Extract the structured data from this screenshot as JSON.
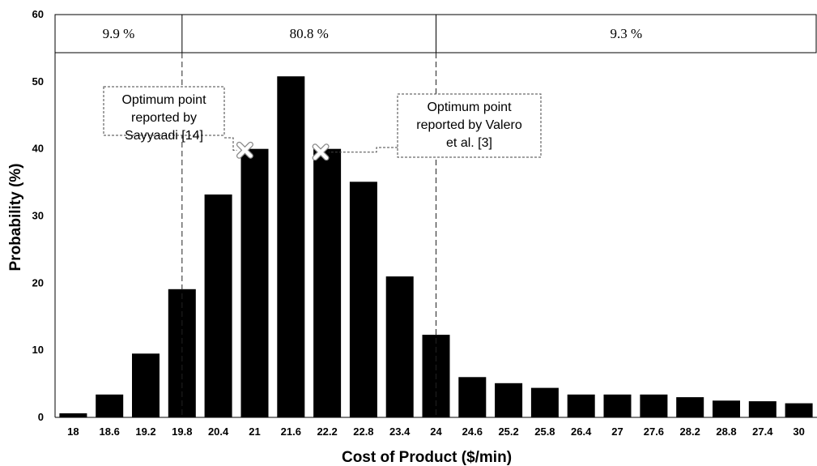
{
  "chart_data": {
    "type": "bar",
    "title": "",
    "xlabel": "Cost of Product ($/min)",
    "ylabel": "Probability (%)",
    "ylim": [
      0,
      60
    ],
    "yticks": [
      "0",
      "10",
      "20",
      "30",
      "40",
      "50",
      "60"
    ],
    "categories": [
      "18",
      "18.6",
      "19.2",
      "19.8",
      "20.4",
      "21",
      "21.6",
      "22.2",
      "22.8",
      "23.4",
      "24",
      "24.6",
      "25.2",
      "25.8",
      "26.4",
      "27",
      "27.6",
      "28.2",
      "28.8",
      "27.4",
      "30"
    ],
    "values": [
      0.6,
      3.4,
      9.5,
      19.1,
      33.2,
      40.0,
      50.8,
      40.0,
      35.1,
      21.0,
      12.3,
      6.0,
      5.1,
      4.4,
      3.4,
      3.4,
      3.4,
      3.0,
      2.5,
      2.4,
      2.1
    ],
    "color": "#000000",
    "grid": false,
    "bands": [
      {
        "label": "9.9 %"
      },
      {
        "label": "80.8 %"
      },
      {
        "label": "9.3 %"
      }
    ],
    "band_boundaries_x": [
      19.8,
      24
    ],
    "annotations": [
      {
        "lines": [
          "Optimum point",
          "reported by",
          "Sayyaadi [14]"
        ],
        "marker_category": "21",
        "marker_value": 39.8
      },
      {
        "lines": [
          "Optimum point",
          "reported by Valero",
          "et al. [3]"
        ],
        "marker_category": "22.2",
        "marker_value": 39.5
      }
    ]
  }
}
